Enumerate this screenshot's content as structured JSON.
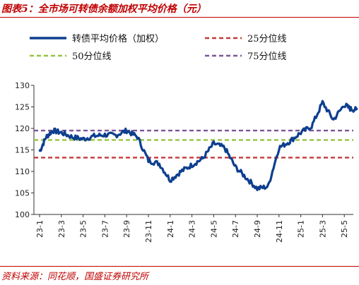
{
  "title": "图表5：全市场可转债余额加权平均价格（元）",
  "source": "资料来源：同花顺，国盛证券研究所",
  "chart_data": {
    "type": "line",
    "ylim": [
      100,
      130
    ],
    "yticks": [
      100,
      105,
      110,
      115,
      120,
      125,
      130
    ],
    "xtick_labels": [
      "23-1",
      "23-3",
      "23-5",
      "23-7",
      "23-9",
      "23-11",
      "24-1",
      "24-3",
      "24-5",
      "24-7",
      "24-9",
      "24-11",
      "25-1",
      "25-3",
      "25-5"
    ],
    "legend_position": "top",
    "series": [
      {
        "name": "转债平均价格（加权）",
        "color": "#0d3f8f",
        "x": [
          0,
          0.3,
          0.6,
          1,
          1.5,
          2,
          2.5,
          3,
          3.5,
          4,
          4.5,
          5,
          5.5,
          6,
          6.5,
          7,
          7.5,
          8,
          8.5,
          9,
          9.5,
          10,
          10.5,
          11,
          11.5,
          12,
          12.5,
          13,
          13.5,
          14,
          14.3,
          14.6
        ],
        "y": [
          114.6,
          118.0,
          119.5,
          119.0,
          118.0,
          117.5,
          118.2,
          118.5,
          118.4,
          119.5,
          118.0,
          112.5,
          111.8,
          108.0,
          110.0,
          111.5,
          113.0,
          116.5,
          115.5,
          111.0,
          108.5,
          106.0,
          106.5,
          115.5,
          117.0,
          119.0,
          120.5,
          126.0,
          122.0,
          125.5,
          124.5,
          124.3
        ]
      },
      {
        "name": "25分位线",
        "color": "#c23a3a",
        "value": 113.2
      },
      {
        "name": "50分位线",
        "color": "#96c33f",
        "value": 117.3
      },
      {
        "name": "75分位线",
        "color": "#7a569a",
        "value": 119.5
      }
    ]
  }
}
